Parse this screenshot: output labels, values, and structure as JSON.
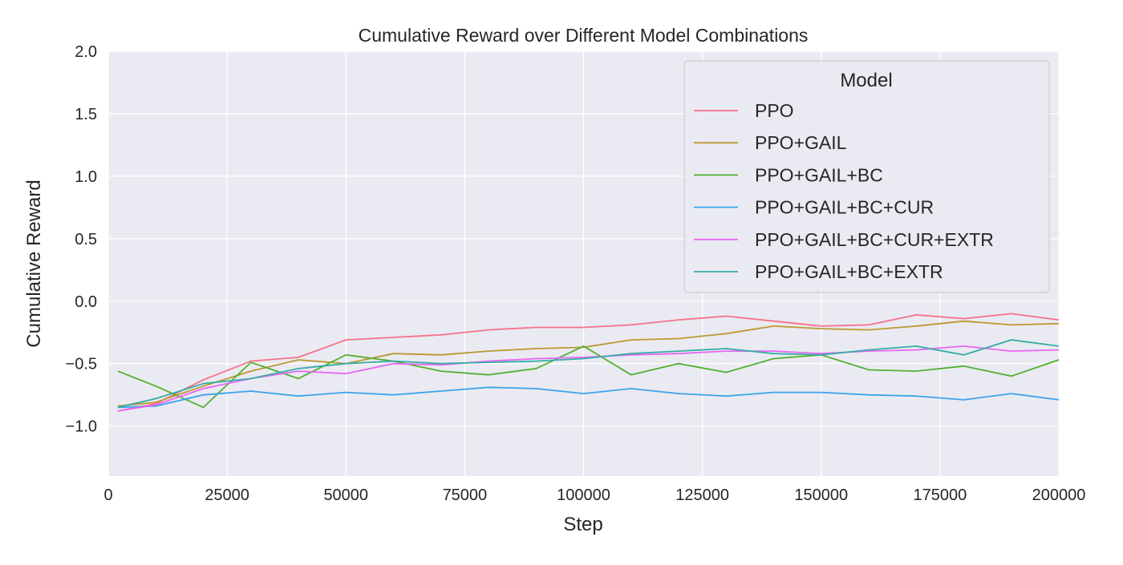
{
  "chart_data": {
    "type": "line",
    "title": "Cumulative Reward over Different Model Combinations",
    "xlabel": "Step",
    "ylabel": "Cumulative Reward",
    "xlim": [
      0,
      200000
    ],
    "ylim": [
      -1.4,
      2.0
    ],
    "xticks": [
      0,
      25000,
      50000,
      75000,
      100000,
      125000,
      150000,
      175000,
      200000
    ],
    "xtick_labels": [
      "0",
      "25000",
      "50000",
      "75000",
      "100000",
      "125000",
      "150000",
      "175000",
      "200000"
    ],
    "yticks": [
      -1.0,
      -0.5,
      0.0,
      0.5,
      1.0,
      1.5,
      2.0
    ],
    "ytick_labels": [
      "−1.0",
      "−0.5",
      "0.0",
      "0.5",
      "1.0",
      "1.5",
      "2.0"
    ],
    "grid": true,
    "legend": {
      "title": "Model",
      "placement": "top-right"
    },
    "x": [
      2000,
      10000,
      20000,
      30000,
      40000,
      50000,
      60000,
      70000,
      80000,
      90000,
      100000,
      110000,
      120000,
      130000,
      140000,
      150000,
      160000,
      170000,
      180000,
      190000,
      200000
    ],
    "series": [
      {
        "name": "PPO",
        "color": "#f77189",
        "values": [
          -0.88,
          -0.82,
          -0.63,
          -0.48,
          -0.45,
          -0.31,
          -0.29,
          -0.27,
          -0.23,
          -0.21,
          -0.21,
          -0.19,
          -0.15,
          -0.12,
          -0.16,
          -0.2,
          -0.19,
          -0.11,
          -0.14,
          -0.1,
          -0.15
        ]
      },
      {
        "name": "PPO+GAIL",
        "color": "#bb9832",
        "values": [
          -0.84,
          -0.81,
          -0.68,
          -0.56,
          -0.47,
          -0.5,
          -0.42,
          -0.43,
          -0.4,
          -0.38,
          -0.37,
          -0.31,
          -0.3,
          -0.26,
          -0.2,
          -0.22,
          -0.23,
          -0.2,
          -0.16,
          -0.19,
          -0.18
        ]
      },
      {
        "name": "PPO+GAIL+BC",
        "color": "#50b131",
        "values": [
          -0.56,
          -0.68,
          -0.85,
          -0.49,
          -0.62,
          -0.43,
          -0.48,
          -0.56,
          -0.59,
          -0.54,
          -0.36,
          -0.59,
          -0.5,
          -0.57,
          -0.46,
          -0.43,
          -0.55,
          -0.56,
          -0.52,
          -0.6,
          -0.47
        ]
      },
      {
        "name": "PPO+GAIL+BC+CUR",
        "color": "#3ba3ec",
        "values": [
          -0.85,
          -0.84,
          -0.75,
          -0.72,
          -0.76,
          -0.73,
          -0.75,
          -0.72,
          -0.69,
          -0.7,
          -0.74,
          -0.7,
          -0.74,
          -0.76,
          -0.73,
          -0.73,
          -0.75,
          -0.76,
          -0.79,
          -0.74,
          -0.79
        ]
      },
      {
        "name": "PPO+GAIL+BC+CUR+EXTR",
        "color": "#e866f4",
        "values": [
          -0.88,
          -0.83,
          -0.7,
          -0.62,
          -0.56,
          -0.58,
          -0.5,
          -0.51,
          -0.48,
          -0.46,
          -0.45,
          -0.43,
          -0.42,
          -0.4,
          -0.4,
          -0.42,
          -0.4,
          -0.39,
          -0.36,
          -0.4,
          -0.39
        ]
      },
      {
        "name": "PPO+GAIL+BC+EXTR",
        "color": "#36ada4",
        "values": [
          -0.85,
          -0.78,
          -0.66,
          -0.62,
          -0.54,
          -0.5,
          -0.48,
          -0.5,
          -0.49,
          -0.48,
          -0.46,
          -0.42,
          -0.4,
          -0.38,
          -0.42,
          -0.43,
          -0.39,
          -0.36,
          -0.43,
          -0.31,
          -0.36
        ]
      }
    ]
  }
}
